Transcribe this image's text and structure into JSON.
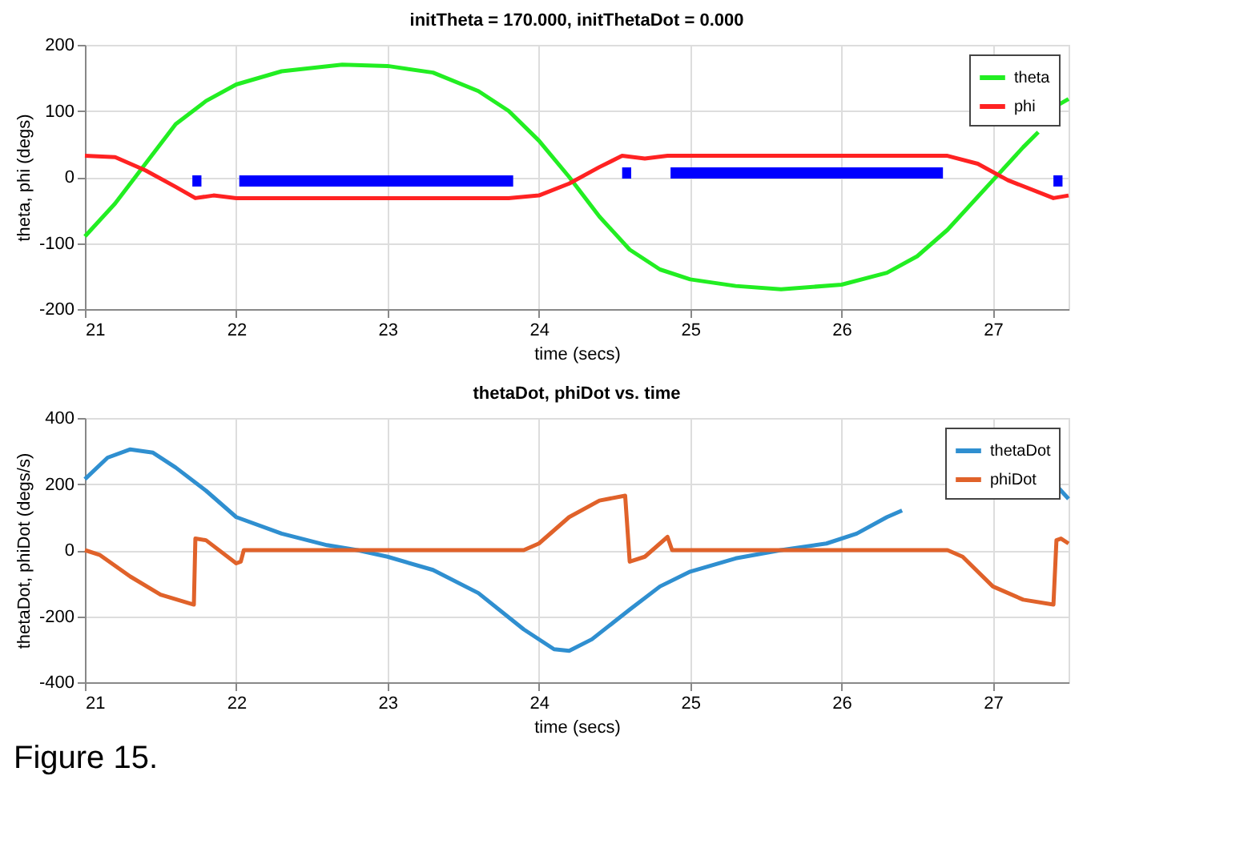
{
  "chart_data": [
    {
      "type": "line",
      "title": "initTheta = 170.000, initThetaDot = 0.000",
      "xlabel": "time (secs)",
      "ylabel": "theta, phi (degs)",
      "xlim": [
        21,
        27.5
      ],
      "xticks": [
        21,
        22,
        23,
        24,
        25,
        26,
        27
      ],
      "ylim": [
        -200,
        200
      ],
      "yticks": [
        -200,
        -100,
        0,
        100,
        200
      ],
      "grid": true,
      "legend": "top right",
      "series": [
        {
          "name": "theta",
          "color": "#22ee22",
          "x": [
            21,
            21.2,
            21.4,
            21.6,
            21.8,
            22,
            22.3,
            22.7,
            23,
            23.3,
            23.6,
            23.8,
            24,
            24.2,
            24.4,
            24.6,
            24.8,
            25,
            25.3,
            25.6,
            26,
            26.3,
            26.5,
            26.7,
            26.9,
            27,
            27.2,
            27.3,
            27.35,
            27.4,
            27.5
          ],
          "values": [
            -90,
            -40,
            20,
            80,
            115,
            140,
            160,
            170,
            168,
            158,
            130,
            100,
            55,
            0,
            -60,
            -110,
            -140,
            -155,
            -165,
            -170,
            -163,
            -145,
            -120,
            -80,
            -30,
            -5,
            45,
            68,
            null,
            105,
            118
          ]
        },
        {
          "name": "phi",
          "color": "#ff2222",
          "x": [
            21,
            21.2,
            21.4,
            21.6,
            21.73,
            21.85,
            22,
            23.8,
            24,
            24.2,
            24.4,
            24.55,
            24.7,
            24.85,
            26.7,
            26.9,
            27.1,
            27.4,
            27.5
          ],
          "values": [
            32,
            30,
            10,
            -15,
            -32,
            -28,
            -32,
            -32,
            -28,
            -10,
            15,
            32,
            28,
            32,
            32,
            20,
            -5,
            -32,
            -28
          ]
        },
        {
          "color": "#0000ff",
          "x": [
            21.71,
            21.77,
            21.9,
            22.02,
            23.83,
            24.2,
            24.55,
            24.61,
            24.7,
            24.87,
            26.67,
            27.0,
            27.4,
            27.46
          ],
          "values": [
            -6,
            -6,
            null,
            -6,
            -6,
            null,
            6,
            6,
            null,
            6,
            6,
            null,
            -6,
            -6
          ]
        }
      ]
    },
    {
      "type": "line",
      "title": "thetaDot, phiDot vs. time",
      "xlabel": "time (secs)",
      "ylabel": "thetaDot, phiDot (degs/s)",
      "xlim": [
        21,
        27.5
      ],
      "xticks": [
        21,
        22,
        23,
        24,
        25,
        26,
        27
      ],
      "ylim": [
        -400,
        400
      ],
      "yticks": [
        -400,
        -200,
        0,
        200,
        400
      ],
      "grid": true,
      "legend": "top right",
      "annotations": [
        "Figure 15."
      ],
      "series": [
        {
          "name": "thetaDot",
          "color": "#2f8fd0",
          "x": [
            21,
            21.15,
            21.3,
            21.45,
            21.6,
            21.8,
            22,
            22.3,
            22.6,
            22.8,
            23,
            23.3,
            23.6,
            23.9,
            24.1,
            24.2,
            24.35,
            24.6,
            24.8,
            25,
            25.3,
            25.6,
            25.9,
            26.1,
            26.3,
            26.4,
            26.9,
            27.42,
            27.5
          ],
          "values": [
            215,
            280,
            305,
            295,
            250,
            180,
            100,
            50,
            15,
            0,
            -20,
            -60,
            -130,
            -240,
            -300,
            -305,
            -270,
            -180,
            -110,
            -65,
            -25,
            0,
            20,
            50,
            100,
            120,
            null,
            195,
            155
          ]
        },
        {
          "name": "phiDot",
          "color": "#e0622a",
          "x": [
            21,
            21.1,
            21.3,
            21.5,
            21.72,
            21.73,
            21.8,
            22,
            22.03,
            22.05,
            23.9,
            24,
            24.2,
            24.4,
            24.57,
            24.6,
            24.7,
            24.85,
            24.88,
            26.7,
            26.8,
            27,
            27.2,
            27.4,
            27.42,
            27.45,
            27.5
          ],
          "values": [
            0,
            -15,
            -80,
            -135,
            -165,
            35,
            30,
            -40,
            -35,
            0,
            0,
            20,
            100,
            150,
            165,
            -35,
            -20,
            40,
            0,
            0,
            -20,
            -110,
            -150,
            -165,
            30,
            35,
            20
          ]
        }
      ]
    }
  ]
}
